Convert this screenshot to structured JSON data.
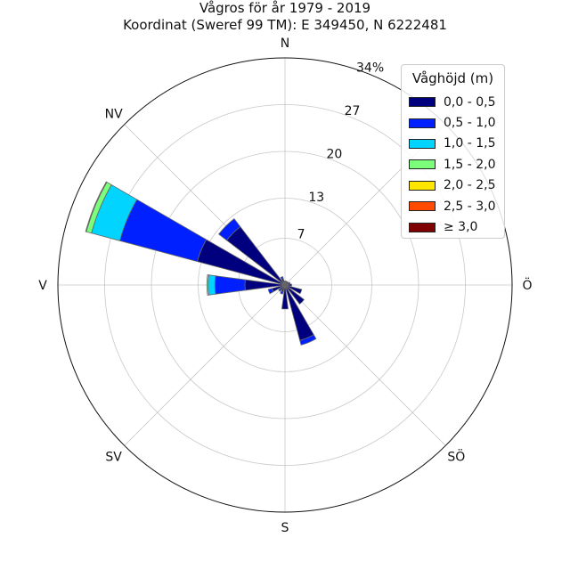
{
  "chart_data": {
    "type": "polar-bar",
    "title": "Vågros för år 1979 - 2019",
    "subtitle": "Koordinat (Sweref 99 TM): E 349450, N 6222481",
    "directions": [
      "N",
      "NV",
      "V",
      "SV",
      "S",
      "SÖ",
      "Ö"
    ],
    "radial_ticks": [
      "7",
      "13",
      "20",
      "27",
      "34%"
    ],
    "radial_max": 34,
    "legend_title": "Våghöjd (m)",
    "bins": [
      {
        "label": "0,0 - 0,5",
        "color": "#00007f"
      },
      {
        "label": "0,5 - 1,0",
        "color": "#0020ff"
      },
      {
        "label": "1,0 - 1,5",
        "color": "#00d4ff"
      },
      {
        "label": "1,5 - 2,0",
        "color": "#7bff7b"
      },
      {
        "label": "2,0 - 2,5",
        "color": "#ffe600"
      },
      {
        "label": "2,5 - 3,0",
        "color": "#ff4a00"
      },
      {
        "label": "≥ 3,0",
        "color": "#7f0000"
      }
    ],
    "sectors": [
      {
        "angle": 0,
        "stack": [
          0.6
        ]
      },
      {
        "angle": 22.5,
        "stack": [
          0.6
        ]
      },
      {
        "angle": 45,
        "stack": [
          0.6
        ]
      },
      {
        "angle": 67.5,
        "stack": [
          0.8
        ]
      },
      {
        "angle": 90,
        "stack": [
          1.0
        ]
      },
      {
        "angle": 112.5,
        "stack": [
          2.6
        ]
      },
      {
        "angle": 135,
        "stack": [
          3.6
        ]
      },
      {
        "angle": 157.5,
        "stack": [
          8.6,
          0.7
        ]
      },
      {
        "angle": 180,
        "stack": [
          3.6
        ]
      },
      {
        "angle": 202.5,
        "stack": [
          1.0,
          0.4
        ]
      },
      {
        "angle": 225,
        "stack": [
          1.0,
          0.2
        ]
      },
      {
        "angle": 247.5,
        "stack": [
          2.0,
          0.6
        ]
      },
      {
        "angle": 270,
        "stack": [
          6.0,
          4.5,
          1.0,
          0.2
        ]
      },
      {
        "angle": 292.5,
        "stack": [
          13.6,
          12.0,
          4.4,
          0.8,
          0.1
        ]
      },
      {
        "angle": 315,
        "stack": [
          11.0,
          1.5
        ]
      },
      {
        "angle": 337.5,
        "stack": [
          1.0,
          0.3
        ]
      }
    ]
  }
}
